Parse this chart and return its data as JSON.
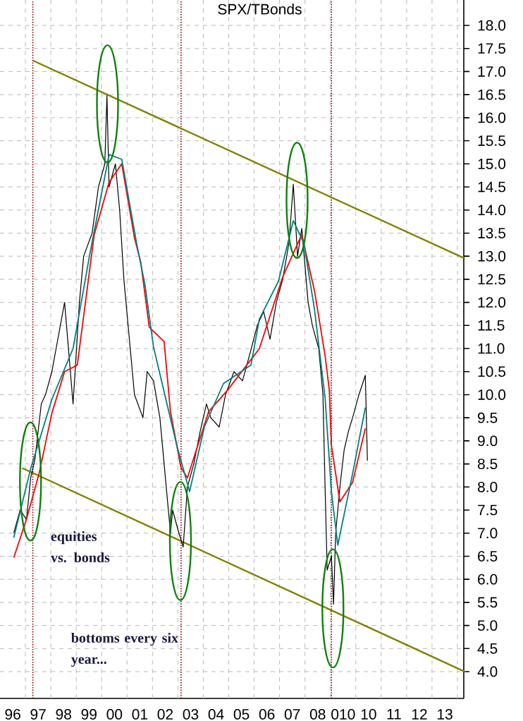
{
  "chart_data": {
    "type": "line",
    "title": "SPX/TBonds",
    "xlim": [
      "1996-01-01",
      "2014-04-01"
    ],
    "ylim": [
      3.42,
      18.55
    ],
    "xticks": [
      {
        "value": "1996-07-02",
        "label": "96"
      },
      {
        "value": "1997-07-02",
        "label": "97"
      },
      {
        "value": "1998-07-02",
        "label": "98"
      },
      {
        "value": "1999-07-02",
        "label": "99"
      },
      {
        "value": "2000-07-02",
        "label": "00"
      },
      {
        "value": "2001-07-02",
        "label": "01"
      },
      {
        "value": "2002-07-02",
        "label": "02"
      },
      {
        "value": "2003-07-02",
        "label": "03"
      },
      {
        "value": "2004-07-02",
        "label": "04"
      },
      {
        "value": "2005-07-02",
        "label": "05"
      },
      {
        "value": "2006-07-02",
        "label": "06"
      },
      {
        "value": "2007-07-02",
        "label": "07"
      },
      {
        "value": "2008-07-02",
        "label": "08"
      },
      {
        "value": "2009-07-02",
        "label": "010"
      },
      {
        "value": "2010-07-02",
        "label": "10"
      },
      {
        "value": "2011-07-02",
        "label": "11"
      },
      {
        "value": "2012-07-02",
        "label": "12"
      },
      {
        "value": "2013-07-02",
        "label": "13"
      },
      {
        "value": "1997-01-01",
        "label": null
      },
      {
        "value": "1998-01-01",
        "label": null
      },
      {
        "value": "1999-01-01",
        "label": null
      },
      {
        "value": "2000-01-01",
        "label": null
      },
      {
        "value": "2001-01-01",
        "label": null
      },
      {
        "value": "2002-01-01",
        "label": null
      },
      {
        "value": "2003-01-01",
        "label": null
      },
      {
        "value": "2004-01-01",
        "label": null
      },
      {
        "value": "2005-01-01",
        "label": null
      },
      {
        "value": "2006-01-01",
        "label": null
      },
      {
        "value": "2007-01-01",
        "label": null
      },
      {
        "value": "2008-01-01",
        "label": null
      },
      {
        "value": "2009-01-01",
        "label": null
      },
      {
        "value": "2010-01-01",
        "label": null
      },
      {
        "value": "2011-01-01",
        "label": null
      },
      {
        "value": "2012-01-01",
        "label": null
      },
      {
        "value": "2013-01-01",
        "label": null
      },
      {
        "value": "2014-01-01",
        "label": null
      }
    ],
    "yticks": [
      {
        "value": 4,
        "label": "4.0"
      },
      {
        "value": 4.5,
        "label": "4.5"
      },
      {
        "value": 5,
        "label": "5.0"
      },
      {
        "value": 5.5,
        "label": "5.5"
      },
      {
        "value": 6,
        "label": "6.0"
      },
      {
        "value": 6.5,
        "label": "6.5"
      },
      {
        "value": 7,
        "label": "7.0"
      },
      {
        "value": 7.5,
        "label": "7.5"
      },
      {
        "value": 8,
        "label": "8.0"
      },
      {
        "value": 8.5,
        "label": "8.5"
      },
      {
        "value": 9,
        "label": "9.0"
      },
      {
        "value": 9.5,
        "label": "9.5"
      },
      {
        "value": 10,
        "label": "10.0"
      },
      {
        "value": 10.5,
        "label": "10.5"
      },
      {
        "value": 11,
        "label": "11.0"
      },
      {
        "value": 11.5,
        "label": "11.5"
      },
      {
        "value": 12,
        "label": "12.0"
      },
      {
        "value": 12.5,
        "label": "12.5"
      },
      {
        "value": 13,
        "label": "13.0"
      },
      {
        "value": 13.5,
        "label": "13.5"
      },
      {
        "value": 14,
        "label": "14.0"
      },
      {
        "value": 14.5,
        "label": "14.5"
      },
      {
        "value": 15,
        "label": "15.0"
      },
      {
        "value": 15.5,
        "label": "15.5"
      },
      {
        "value": 16,
        "label": "16.0"
      },
      {
        "value": 16.5,
        "label": "16.5"
      },
      {
        "value": 17,
        "label": "17.0"
      },
      {
        "value": 17.5,
        "label": "17.5"
      },
      {
        "value": 18,
        "label": "18.0"
      }
    ],
    "grid": true,
    "marker": "none",
    "series": [
      {
        "color": "#808000",
        "x": [
          "1997-04",
          "2014-04"
        ],
        "values": [
          17.24,
          12.95
        ]
      },
      {
        "color": "#808000",
        "x": [
          "1996-11",
          "2014-04"
        ],
        "values": [
          8.41,
          4.0
        ]
      },
      {
        "color": "#000000",
        "x": [
          "1996-07",
          "1996-10",
          "1997-01",
          "1997-03",
          "1997-05",
          "1997-08",
          "1997-10",
          "1998-01",
          "1998-03",
          "1998-07",
          "1998-11",
          "1999-02",
          "1999-04",
          "1999-08",
          "1999-11",
          "2000-02",
          "2000-03",
          "2000-04",
          "2000-07",
          "2000-09",
          "2000-11",
          "2001-02",
          "2001-04",
          "2001-08",
          "2001-10",
          "2002-01",
          "2002-04",
          "2002-07",
          "2002-09",
          "2002-10",
          "2003-01",
          "2003-03",
          "2003-05",
          "2003-08",
          "2003-11",
          "2004-02",
          "2004-04",
          "2004-08",
          "2004-11",
          "2005-03",
          "2005-07",
          "2005-10",
          "2006-02",
          "2006-05",
          "2006-08",
          "2006-11",
          "2007-02",
          "2007-05",
          "2007-07",
          "2007-09",
          "2007-11",
          "2008-02",
          "2008-04",
          "2008-07",
          "2008-09",
          "2008-10",
          "2008-11",
          "2009-01",
          "2009-02",
          "2009-03",
          "2009-05",
          "2009-07",
          "2009-09",
          "2009-11",
          "2010-02",
          "2010-05",
          "2010-06"
        ],
        "values": [
          7.0,
          7.5,
          7.3,
          8.2,
          8.6,
          9.8,
          10.0,
          10.5,
          11.0,
          12.0,
          9.8,
          12.0,
          13.0,
          13.5,
          14.5,
          15.0,
          16.48,
          14.5,
          15.0,
          14.0,
          12.5,
          11.0,
          10.0,
          9.5,
          10.5,
          10.3,
          9.5,
          8.0,
          7.0,
          7.5,
          7.0,
          6.7,
          8.0,
          8.5,
          9.2,
          9.8,
          9.5,
          9.3,
          10.0,
          10.5,
          10.3,
          10.8,
          11.5,
          11.8,
          11.2,
          12.0,
          12.5,
          13.3,
          14.56,
          13.0,
          13.6,
          12.0,
          11.5,
          11.0,
          10.0,
          8.0,
          6.2,
          6.5,
          5.46,
          7.0,
          8.0,
          8.8,
          9.2,
          9.5,
          10.0,
          10.42,
          8.57
        ]
      },
      {
        "color": "#ff0000",
        "x": [
          "1996-07",
          "1997-01",
          "1997-07",
          "1998-01",
          "1998-07",
          "1999-01",
          "1999-09",
          "2000-04",
          "2000-10",
          "2001-04",
          "2001-07",
          "2001-11",
          "2002-06",
          "2002-09",
          "2003-02",
          "2003-05",
          "2004-03",
          "2004-12",
          "2006-03",
          "2007-02",
          "2007-11",
          "2008-05",
          "2008-10",
          "2008-12",
          "2009-01",
          "2009-05",
          "2009-11",
          "2010-05"
        ],
        "values": [
          6.47,
          7.3,
          8.3,
          9.6,
          10.5,
          10.64,
          13.47,
          14.6,
          15.0,
          13.4,
          12.86,
          11.46,
          11.15,
          9.63,
          8.41,
          8.2,
          9.63,
          10.1,
          11.0,
          12.55,
          13.47,
          12.25,
          10.85,
          10.1,
          8.9,
          7.68,
          8.1,
          9.27
        ]
      },
      {
        "color": "#008080",
        "x": [
          "1996-07",
          "1997-03",
          "1998-01",
          "1998-11",
          "1999-07",
          "2000-04",
          "2000-10",
          "2001-05",
          "2001-09",
          "2002-01",
          "2002-12",
          "2003-06",
          "2004-01",
          "2004-10",
          "2005-11",
          "2006-03",
          "2006-12",
          "2007-07",
          "2007-12",
          "2008-05",
          "2008-10",
          "2009-01",
          "2009-04",
          "2009-11",
          "2010-05"
        ],
        "values": [
          6.9,
          8.4,
          9.9,
          11.0,
          13.07,
          15.2,
          15.1,
          13.28,
          12.37,
          11.03,
          8.9,
          7.9,
          9.3,
          10.24,
          10.64,
          11.64,
          12.46,
          13.77,
          13.28,
          11.85,
          9.93,
          7.9,
          6.74,
          8.29,
          9.72
        ]
      }
    ],
    "ref_lines": [
      {
        "axis": "x",
        "value": "1997-04",
        "color": "#8b0000",
        "line_style": "dotted"
      },
      {
        "axis": "x",
        "value": "2003-02",
        "color": "#8b0000",
        "line_style": "dotted"
      },
      {
        "axis": "x",
        "value": "2009-01",
        "color": "#8b0000",
        "line_style": "dotted"
      }
    ],
    "annotations": [
      "equities vs. bonds",
      "bottoms every six year..."
    ]
  }
}
